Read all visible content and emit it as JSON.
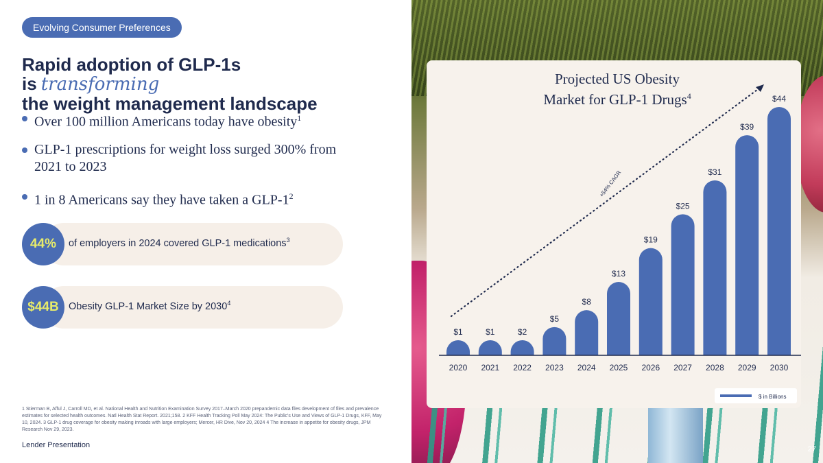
{
  "tag": "Evolving Consumer Preferences",
  "headline": {
    "part1": "Rapid adoption of GLP-1s is",
    "accent": "transforming",
    "part2": "the weight management landscape"
  },
  "bullets": [
    {
      "text": "Over 100 million Americans today have obesity",
      "sup": "1"
    },
    {
      "text": "GLP-1 prescriptions for weight loss surged 300% from 2021 to 2023",
      "sup": ""
    },
    {
      "text": "1 in 8 Americans say they have taken a GLP-1",
      "sup": "2"
    }
  ],
  "stats": [
    {
      "value": "44%",
      "text": "of employers in 2024 covered GLP-1 medications",
      "sup": "3"
    },
    {
      "value": "$44B",
      "text": "Obesity GLP-1 Market Size by 2030",
      "sup": "4"
    }
  ],
  "footnote": "1 Stierman B, Afful J, Carroll MD, et al. National Health and Nutrition Examination Survey 2017–March 2020 prepandemic data files development of files and prevalence estimates for selected health outcomes. Natl Health Stat Report. 2021;158. 2 KFF Health Tracking Poll May 2024: The Public's Use and Views of GLP-1 Drugs, KFF, May 10, 2024. 3 GLP-1 drug coverage for obesity making inroads with large employers; Mercer, HR Dive, Nov 20, 2024 4 The increase in appetite for obesity drugs, JPM Research Nov 29, 2023.",
  "footer_label": "Lender Presentation",
  "page_number": "27",
  "colors": {
    "accent": "#4a6cb3",
    "highlight": "#e8ec6a",
    "navy": "#1f2a4d",
    "card": "#f7f2ec"
  },
  "chart_data": {
    "type": "bar",
    "title_line1": "Projected US Obesity",
    "title_line2": "Market for GLP-1 Drugs",
    "title_sup": "4",
    "categories": [
      "2020",
      "2021",
      "2022",
      "2023",
      "2024",
      "2025",
      "2026",
      "2027",
      "2028",
      "2029",
      "2030"
    ],
    "values": [
      1,
      1,
      2,
      5,
      8,
      13,
      19,
      25,
      31,
      39,
      44
    ],
    "labels": [
      "$1",
      "$1",
      "$2",
      "$5",
      "$8",
      "$13",
      "$19",
      "$25",
      "$31",
      "$39",
      "$44"
    ],
    "trend_label": "+54% CAGR",
    "legend": "$ in Billions",
    "color": "#4a6cb3",
    "ylim": [
      0,
      44
    ]
  }
}
